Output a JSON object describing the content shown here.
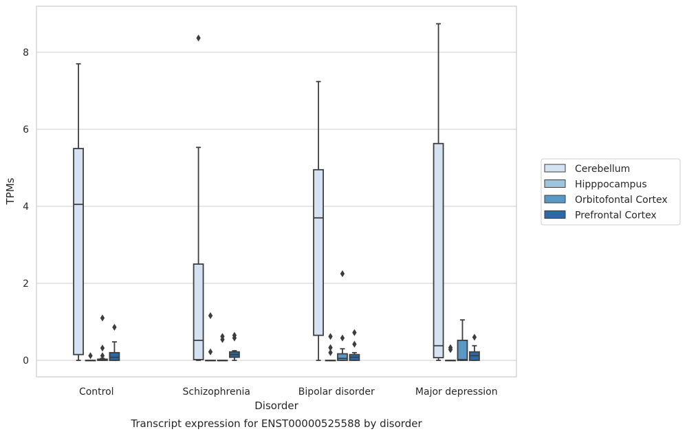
{
  "chart_data": {
    "type": "box",
    "title": "Transcript expression for ENST00000525588 by disorder",
    "xlabel": "Disorder",
    "ylabel": "TPMs",
    "ylim": [
      -0.4,
      9.2
    ],
    "yticks": [
      0,
      2,
      4,
      6,
      8
    ],
    "grid": true,
    "legend_position": "right",
    "categories": [
      "Control",
      "Schizophrenia",
      "Bipolar disorder",
      "Major depression"
    ],
    "series": [
      {
        "name": "Cerebellum",
        "color": "#d4e2f1",
        "boxes": [
          {
            "whislo": 0.0,
            "q1": 0.15,
            "med": 4.05,
            "q3": 5.5,
            "whishi": 7.7,
            "fliers": []
          },
          {
            "whislo": 0.0,
            "q1": 0.02,
            "med": 0.52,
            "q3": 2.5,
            "whishi": 5.53,
            "fliers": [
              8.37
            ]
          },
          {
            "whislo": 0.0,
            "q1": 0.65,
            "med": 3.7,
            "q3": 4.95,
            "whishi": 7.24,
            "fliers": []
          },
          {
            "whislo": 0.0,
            "q1": 0.07,
            "med": 0.38,
            "q3": 5.63,
            "whishi": 8.74,
            "fliers": []
          }
        ]
      },
      {
        "name": "Hipppocampus",
        "color": "#9ec4de",
        "boxes": [
          {
            "whislo": 0.0,
            "q1": 0.0,
            "med": 0.0,
            "q3": 0.0,
            "whishi": 0.0,
            "fliers": [
              0.12
            ]
          },
          {
            "whislo": 0.0,
            "q1": 0.0,
            "med": 0.0,
            "q3": 0.0,
            "whishi": 0.0,
            "fliers": [
              1.16,
              0.22
            ]
          },
          {
            "whislo": 0.0,
            "q1": 0.0,
            "med": 0.0,
            "q3": 0.0,
            "whishi": 0.0,
            "fliers": [
              0.62,
              0.33,
              0.2
            ]
          },
          {
            "whislo": 0.0,
            "q1": 0.0,
            "med": 0.0,
            "q3": 0.0,
            "whishi": 0.0,
            "fliers": [
              0.33,
              0.28
            ]
          }
        ]
      },
      {
        "name": "Orbitofontal Cortex",
        "color": "#5a98c6",
        "boxes": [
          {
            "whislo": 0.0,
            "q1": 0.0,
            "med": 0.01,
            "q3": 0.03,
            "whishi": 0.05,
            "fliers": [
              1.1,
              0.32,
              0.12
            ]
          },
          {
            "whislo": 0.0,
            "q1": 0.0,
            "med": 0.0,
            "q3": 0.0,
            "whishi": 0.0,
            "fliers": [
              0.62,
              0.54
            ]
          },
          {
            "whislo": 0.0,
            "q1": 0.0,
            "med": 0.05,
            "q3": 0.17,
            "whishi": 0.3,
            "fliers": [
              2.25,
              0.58
            ]
          },
          {
            "whislo": 0.0,
            "q1": 0.0,
            "med": 0.02,
            "q3": 0.52,
            "whishi": 1.05,
            "fliers": []
          }
        ]
      },
      {
        "name": "Prefrontal Cortex",
        "color": "#2b6aa7",
        "boxes": [
          {
            "whislo": 0.0,
            "q1": 0.0,
            "med": 0.08,
            "q3": 0.2,
            "whishi": 0.48,
            "fliers": [
              0.86
            ]
          },
          {
            "whislo": 0.0,
            "q1": 0.08,
            "med": 0.15,
            "q3": 0.22,
            "whishi": 0.25,
            "fliers": [
              0.65,
              0.58
            ]
          },
          {
            "whislo": 0.0,
            "q1": 0.0,
            "med": 0.08,
            "q3": 0.15,
            "whishi": 0.2,
            "fliers": [
              0.72,
              0.42
            ]
          },
          {
            "whislo": 0.0,
            "q1": 0.0,
            "med": 0.12,
            "q3": 0.22,
            "whishi": 0.38,
            "fliers": [
              0.6
            ]
          }
        ]
      }
    ]
  }
}
